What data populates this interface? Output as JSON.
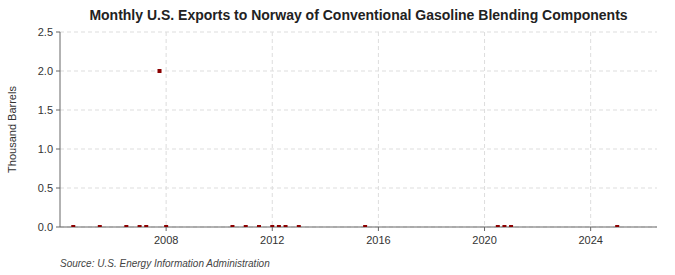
{
  "chart_data": {
    "type": "scatter",
    "title": "Monthly U.S. Exports to Norway of Conventional Gasoline Blending Components",
    "ylabel": "Thousand Barrels",
    "annotations": [
      "Source: U.S. Energy Information Administration"
    ],
    "x": [
      2004.5,
      2005.5,
      2006.5,
      2007.0,
      2007.25,
      2007.75,
      2008.0,
      2010.5,
      2011.0,
      2011.5,
      2012.0,
      2012.25,
      2012.5,
      2013.0,
      2015.5,
      2020.5,
      2020.75,
      2021.0,
      2025.0
    ],
    "values": [
      0.0,
      0.0,
      0.0,
      0.0,
      0.0,
      2.0,
      0.0,
      0.0,
      0.0,
      0.0,
      0.0,
      0.0,
      0.0,
      0.0,
      0.0,
      0.0,
      0.0,
      0.0,
      0.0
    ],
    "color": "#8b0000",
    "marker": "square",
    "xlim": [
      2004.0,
      2026.5
    ],
    "xticks": [
      2008,
      2012,
      2016,
      2020,
      2024
    ],
    "ylim": [
      0,
      2.5
    ],
    "yticks": [
      {
        "value": 0.0,
        "label": "0.0"
      },
      0.5,
      {
        "value": 1.0,
        "label": "1.0"
      },
      1.5,
      {
        "value": 2.0,
        "label": "2.0"
      },
      2.5
    ],
    "grid": true
  }
}
